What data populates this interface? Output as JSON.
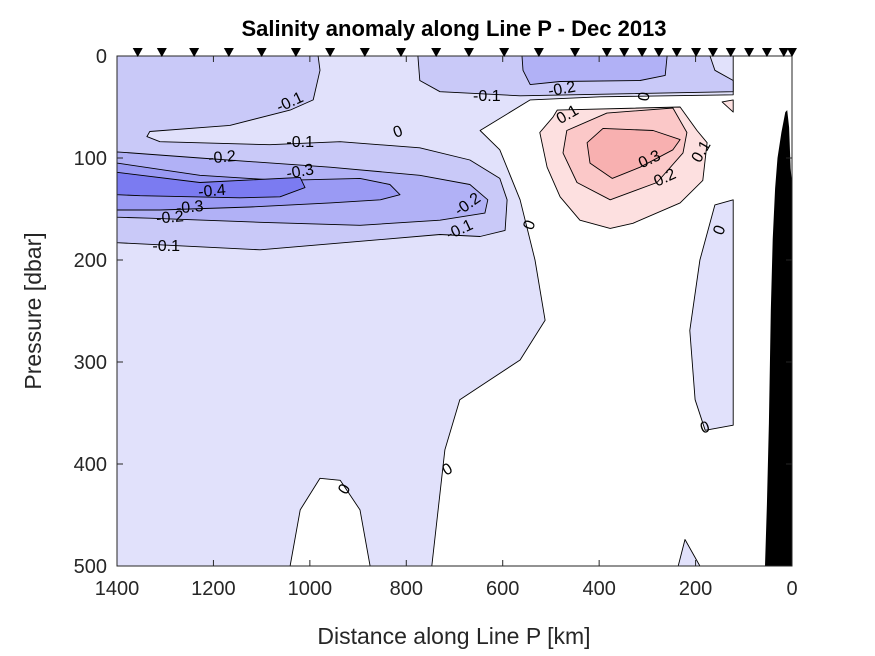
{
  "chart_data": {
    "type": "contour",
    "title": "Salinity anomaly along Line P - Dec 2013",
    "xlabel": "Distance along Line P [km]",
    "ylabel": "Pressure [dbar]",
    "xlim": [
      1400,
      0
    ],
    "ylim": [
      0,
      500
    ],
    "x_reversed": true,
    "y_reversed": true,
    "xticks": [
      1400,
      1200,
      1000,
      800,
      600,
      400,
      200,
      0
    ],
    "yticks": [
      0,
      100,
      200,
      300,
      400,
      500
    ],
    "grid": false,
    "levels": [
      -0.4,
      -0.3,
      -0.2,
      -0.1,
      0,
      0.1,
      0.2,
      0.3
    ],
    "colors": {
      "lt_-0.4": "#7b7bf1",
      "-0.4_-0.3": "#9a9af4",
      "-0.3_-0.2": "#b1b1f6",
      "-0.2_-0.1": "#c9c9f8",
      "-0.1_0": "#e1e1fb",
      "0_0.1": "#ffffff",
      "0.1_0.2": "#fde0e0",
      "0.2_0.3": "#fbc8c8",
      "gt_0.3": "#f8b0b0",
      "bathymetry": "#000000"
    },
    "regions": [
      {
        "level": "-0.1_0",
        "points": [
          [
            1400,
            0
          ],
          [
            122,
            0
          ],
          [
            122,
            38
          ],
          [
            398,
            40
          ],
          [
            543,
            43
          ],
          [
            647,
            73
          ],
          [
            606,
            92
          ],
          [
            564,
            141
          ],
          [
            533,
            200
          ],
          [
            512,
            259
          ],
          [
            564,
            298
          ],
          [
            689,
            337
          ],
          [
            720,
            386
          ],
          [
            747,
            500
          ],
          [
            875,
            500
          ],
          [
            896,
            445
          ],
          [
            937,
            416
          ],
          [
            979,
            414
          ],
          [
            1020,
            445
          ],
          [
            1041,
            500
          ],
          [
            1400,
            500
          ]
        ]
      },
      {
        "level": "-0.1_0",
        "points": [
          [
            122,
            141
          ],
          [
            160,
            146
          ],
          [
            191,
            200
          ],
          [
            212,
            269
          ],
          [
            201,
            337
          ],
          [
            180,
            367
          ],
          [
            122,
            362
          ]
        ]
      },
      {
        "level": "-0.1_0",
        "points": [
          [
            236,
            500
          ],
          [
            222,
            474
          ],
          [
            191,
            500
          ]
        ]
      },
      {
        "level": "-0.2_-0.1",
        "points": [
          [
            1400,
            0
          ],
          [
            983,
            0
          ],
          [
            979,
            14
          ],
          [
            993,
            43
          ],
          [
            1041,
            53
          ],
          [
            1166,
            68
          ],
          [
            1332,
            74
          ],
          [
            1338,
            79
          ],
          [
            1311,
            84
          ],
          [
            1083,
            87
          ],
          [
            937,
            84
          ],
          [
            772,
            90
          ],
          [
            668,
            102
          ],
          [
            606,
            120
          ],
          [
            591,
            141
          ],
          [
            595,
            171
          ],
          [
            647,
            177
          ],
          [
            730,
            175
          ],
          [
            1103,
            190
          ],
          [
            1400,
            183
          ]
        ]
      },
      {
        "level": "-0.2_-0.1",
        "points": [
          [
            776,
            0
          ],
          [
            170,
            0
          ],
          [
            160,
            14
          ],
          [
            122,
            24
          ],
          [
            122,
            35
          ],
          [
            564,
            39
          ],
          [
            730,
            35
          ],
          [
            772,
            24
          ]
        ]
      },
      {
        "level": "-0.3_-0.2",
        "points": [
          [
            1400,
            94
          ],
          [
            1228,
            100
          ],
          [
            958,
            109
          ],
          [
            772,
            117
          ],
          [
            668,
            126
          ],
          [
            631,
            141
          ],
          [
            637,
            154
          ],
          [
            730,
            161
          ],
          [
            896,
            166
          ],
          [
            1103,
            163
          ],
          [
            1332,
            159
          ],
          [
            1400,
            158
          ]
        ]
      },
      {
        "level": "-0.3_-0.2",
        "points": [
          [
            560,
            0
          ],
          [
            259,
            0
          ],
          [
            263,
            19
          ],
          [
            315,
            24
          ],
          [
            481,
            25
          ],
          [
            543,
            28
          ],
          [
            558,
            14
          ]
        ]
      },
      {
        "level": "-0.4_-0.3",
        "points": [
          [
            1400,
            105
          ],
          [
            1228,
            117
          ],
          [
            1062,
            122
          ],
          [
            896,
            120
          ],
          [
            834,
            126
          ],
          [
            813,
            136
          ],
          [
            854,
            141
          ],
          [
            958,
            144
          ],
          [
            1124,
            148
          ],
          [
            1311,
            151
          ],
          [
            1400,
            151
          ]
        ]
      },
      {
        "level": "lt_-0.4",
        "points": [
          [
            1400,
            114
          ],
          [
            1228,
            124
          ],
          [
            1020,
            119
          ],
          [
            1010,
            129
          ],
          [
            1062,
            138
          ],
          [
            1145,
            139
          ],
          [
            1352,
            137
          ],
          [
            1400,
            136
          ]
        ]
      },
      {
        "level": "0.1_0.2",
        "points": [
          [
            487,
            53
          ],
          [
            232,
            50
          ],
          [
            197,
            73
          ],
          [
            176,
            85
          ],
          [
            185,
            122
          ],
          [
            232,
            144
          ],
          [
            330,
            164
          ],
          [
            377,
            169
          ],
          [
            440,
            161
          ],
          [
            481,
            138
          ],
          [
            508,
            109
          ],
          [
            523,
            75
          ],
          [
            496,
            60
          ]
        ]
      },
      {
        "level": "0.1_0.2",
        "points": [
          [
            145,
            45
          ],
          [
            122,
            43
          ],
          [
            122,
            55
          ]
        ]
      },
      {
        "level": "0.2_0.3",
        "points": [
          [
            467,
            73
          ],
          [
            384,
            56
          ],
          [
            247,
            51
          ],
          [
            218,
            75
          ],
          [
            226,
            95
          ],
          [
            280,
            124
          ],
          [
            377,
            141
          ],
          [
            446,
            124
          ],
          [
            475,
            95
          ]
        ]
      },
      {
        "level": "gt_0.3",
        "points": [
          [
            425,
            85
          ],
          [
            392,
            71
          ],
          [
            288,
            73
          ],
          [
            232,
            82
          ],
          [
            247,
            92
          ],
          [
            315,
            109
          ],
          [
            373,
            120
          ],
          [
            419,
            105
          ]
        ]
      }
    ],
    "bathymetry": [
      [
        56,
        500
      ],
      [
        52,
        440
      ],
      [
        48,
        360
      ],
      [
        44,
        250
      ],
      [
        40,
        180
      ],
      [
        35,
        130
      ],
      [
        30,
        100
      ],
      [
        22,
        75
      ],
      [
        14,
        55
      ],
      [
        10,
        53
      ],
      [
        6,
        70
      ],
      [
        3,
        110
      ],
      [
        0,
        125
      ],
      [
        0,
        500
      ]
    ],
    "stations_km": [
      1357,
      1307,
      1240,
      1168,
      1100,
      1029,
      958,
      886,
      811,
      738,
      670,
      597,
      525,
      450,
      384,
      348,
      311,
      276,
      239,
      199,
      164,
      127,
      89,
      52,
      17,
      0
    ],
    "contour_labels": [
      {
        "text": "-0.1",
        "x": 1041,
        "y": 46
      },
      {
        "text": "-0.1",
        "x": 1020,
        "y": 85
      },
      {
        "text": "-0.2",
        "x": 1182,
        "y": 100
      },
      {
        "text": "-0.3",
        "x": 1020,
        "y": 114
      },
      {
        "text": "-0.4",
        "x": 1203,
        "y": 133
      },
      {
        "text": "-0.3",
        "x": 1249,
        "y": 149
      },
      {
        "text": "-0.2",
        "x": 1290,
        "y": 159
      },
      {
        "text": "-0.1",
        "x": 1298,
        "y": 187
      },
      {
        "text": "-0.2",
        "x": 672,
        "y": 146
      },
      {
        "text": "-0.1",
        "x": 689,
        "y": 171
      },
      {
        "text": "0",
        "x": 817,
        "y": 75
      },
      {
        "text": "0",
        "x": 543,
        "y": 166
      },
      {
        "text": "-0.1",
        "x": 633,
        "y": 40
      },
      {
        "text": "-0.2",
        "x": 477,
        "y": 33
      },
      {
        "text": "0",
        "x": 305,
        "y": 40
      },
      {
        "text": "0.1",
        "x": 465,
        "y": 58
      },
      {
        "text": "0.3",
        "x": 295,
        "y": 102
      },
      {
        "text": "0.2",
        "x": 263,
        "y": 120
      },
      {
        "text": "0.1",
        "x": 187,
        "y": 94
      },
      {
        "text": "0",
        "x": 149,
        "y": 171
      },
      {
        "text": "0",
        "x": 714,
        "y": 406
      },
      {
        "text": "0",
        "x": 927,
        "y": 425
      },
      {
        "text": "0",
        "x": 180,
        "y": 365
      }
    ]
  }
}
